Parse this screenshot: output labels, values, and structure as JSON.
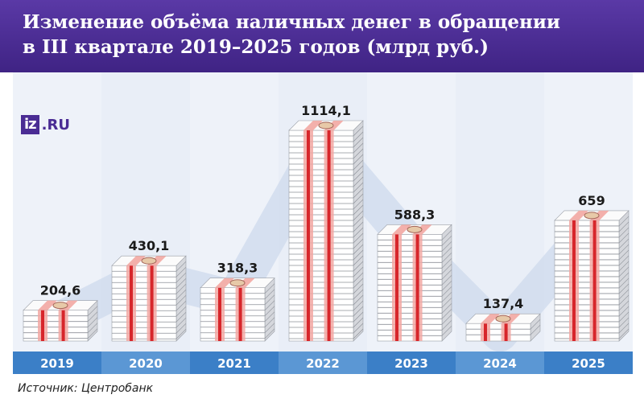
{
  "title": {
    "line1": "Изменение объёма наличных денег в обращении",
    "line2": "в III квартале 2019–2025 годов (млрд руб.)"
  },
  "logo": {
    "box": "iz",
    "rest": ".RU"
  },
  "source": "Источник: Центробанк",
  "colors": {
    "header": "#4a2c94",
    "year_bar_dark": "#3b7fc7",
    "year_bar_light": "#8bbde9",
    "column_bg": "#e9eef7",
    "band": "#ced9ec",
    "stack_side": "#d5d7dc",
    "stack_face": "#ffffff",
    "strap": "#d7262b",
    "strap_light": "#f2a7a2"
  },
  "chart_data": {
    "type": "bar",
    "title": "Изменение объёма наличных денег в обращении в III квартале 2019–2025 годов (млрд руб.)",
    "categories": [
      "2019",
      "2020",
      "2021",
      "2022",
      "2023",
      "2024",
      "2025"
    ],
    "values": [
      204.6,
      430.1,
      318.3,
      1114.1,
      588.3,
      137.4,
      659
    ],
    "value_labels": [
      "204,6",
      "430,1",
      "318,3",
      "1114,1",
      "588,3",
      "137,4",
      "659"
    ],
    "unit": "млрд руб.",
    "xlabel": "",
    "ylabel": "",
    "grid": false,
    "legend": "none"
  }
}
